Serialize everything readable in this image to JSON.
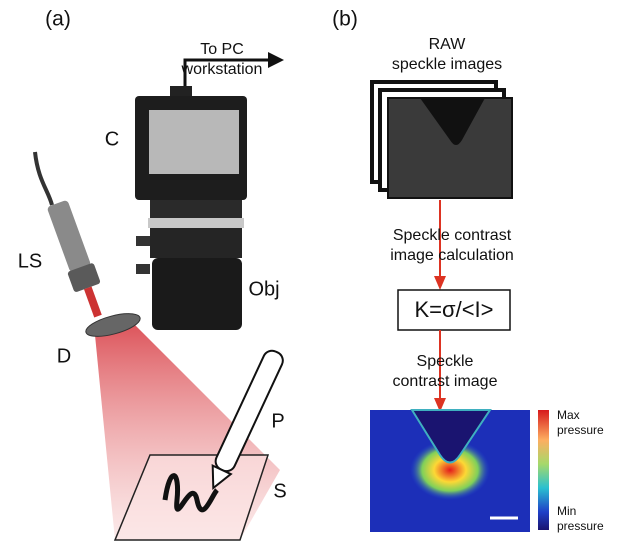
{
  "panel_a": {
    "label": "(a)",
    "output": [
      "To PC",
      "workstation"
    ],
    "camera": "C",
    "laser_source": "LS",
    "objective": "Obj",
    "diffuser": "D",
    "pen": "P",
    "sample": "S"
  },
  "panel_b": {
    "label": "(b)",
    "raw": [
      "RAW",
      "speckle images"
    ],
    "step": [
      "Speckle contrast",
      "image calculation"
    ],
    "formula": "K=σ/<I>",
    "result": [
      "Speckle",
      "contrast image"
    ],
    "colorbar_max": [
      "Max",
      "pressure"
    ],
    "colorbar_min": [
      "Min",
      "pressure"
    ]
  }
}
